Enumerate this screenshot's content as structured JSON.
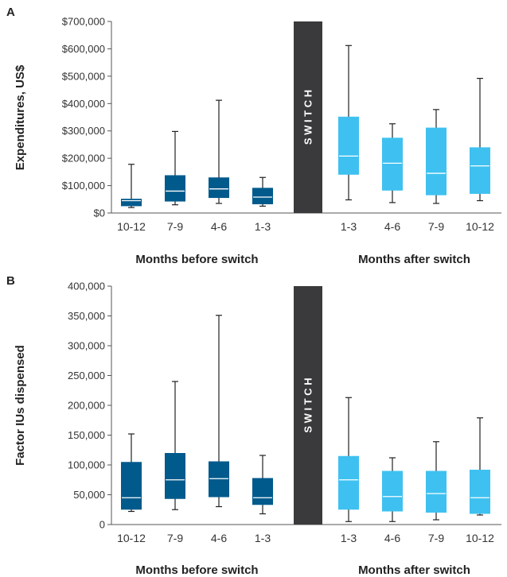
{
  "chart_data": [
    {
      "type": "box",
      "panel_label": "A",
      "ylabel": "Expenditures, US$",
      "ylim": [
        0,
        700000
      ],
      "y_ticks": [
        "$0",
        "$100,000",
        "$200,000",
        "$300,000",
        "$400,000",
        "$500,000",
        "$600,000",
        "$700,000"
      ],
      "switch_label": "S W I T C H",
      "groups": [
        {
          "label": "Months before switch",
          "color": "#005a8c",
          "categories": [
            "10-12",
            "7-9",
            "4-6",
            "1-3"
          ],
          "boxes": [
            {
              "min": 20000,
              "q1": 25000,
              "median": 45000,
              "q3": 52000,
              "max": 178000
            },
            {
              "min": 30000,
              "q1": 42000,
              "median": 80000,
              "q3": 138000,
              "max": 298000
            },
            {
              "min": 35000,
              "q1": 55000,
              "median": 88000,
              "q3": 130000,
              "max": 412000
            },
            {
              "min": 25000,
              "q1": 32000,
              "median": 58000,
              "q3": 92000,
              "max": 130000
            }
          ]
        },
        {
          "label": "Months after switch",
          "color": "#3ec1f0",
          "categories": [
            "1-3",
            "4-6",
            "7-9",
            "10-12"
          ],
          "boxes": [
            {
              "min": 48000,
              "q1": 140000,
              "median": 208000,
              "q3": 352000,
              "max": 612000
            },
            {
              "min": 38000,
              "q1": 82000,
              "median": 182000,
              "q3": 275000,
              "max": 326000
            },
            {
              "min": 35000,
              "q1": 65000,
              "median": 145000,
              "q3": 312000,
              "max": 378000
            },
            {
              "min": 45000,
              "q1": 70000,
              "median": 172000,
              "q3": 240000,
              "max": 492000
            }
          ]
        }
      ]
    },
    {
      "type": "box",
      "panel_label": "B",
      "ylabel": "Factor IUs dispensed",
      "ylim": [
        0,
        400000
      ],
      "y_ticks": [
        "0",
        "50,000",
        "100,000",
        "150,000",
        "200,000",
        "250,000",
        "300,000",
        "350,000",
        "400,000"
      ],
      "switch_label": "S W I T C H",
      "groups": [
        {
          "label": "Months before switch",
          "color": "#005a8c",
          "categories": [
            "10-12",
            "7-9",
            "4-6",
            "1-3"
          ],
          "boxes": [
            {
              "min": 22000,
              "q1": 25000,
              "median": 45000,
              "q3": 105000,
              "max": 152000
            },
            {
              "min": 25000,
              "q1": 43000,
              "median": 75000,
              "q3": 120000,
              "max": 240000
            },
            {
              "min": 30000,
              "q1": 46000,
              "median": 77000,
              "q3": 106000,
              "max": 351000
            },
            {
              "min": 18000,
              "q1": 33000,
              "median": 45000,
              "q3": 78000,
              "max": 116000
            }
          ]
        },
        {
          "label": "Months after switch",
          "color": "#3ec1f0",
          "categories": [
            "1-3",
            "4-6",
            "7-9",
            "10-12"
          ],
          "boxes": [
            {
              "min": 5000,
              "q1": 25000,
              "median": 75000,
              "q3": 115000,
              "max": 213000
            },
            {
              "min": 5000,
              "q1": 22000,
              "median": 47000,
              "q3": 90000,
              "max": 112000
            },
            {
              "min": 8000,
              "q1": 20000,
              "median": 52000,
              "q3": 90000,
              "max": 139000
            },
            {
              "min": 16000,
              "q1": 18000,
              "median": 45000,
              "q3": 92000,
              "max": 179000
            }
          ]
        }
      ]
    }
  ],
  "colors": {
    "before": "#005a8c",
    "after": "#3ec1f0",
    "switch_bar": "#3a3a3c",
    "axis": "#555555",
    "median_line": "#ffffff"
  }
}
